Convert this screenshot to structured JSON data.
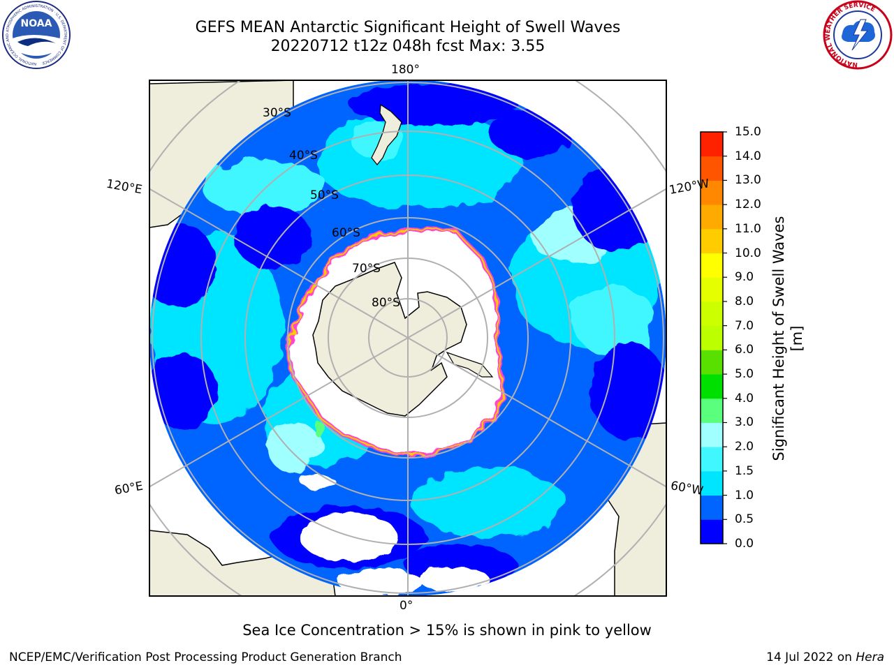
{
  "title": {
    "line1": "GEFS MEAN Antarctic Significant Height of Swell Waves",
    "line2": "20220712 t12z 048h fcst   Max: 3.55"
  },
  "logos": {
    "left": "NOAA",
    "left_ring": "NATIONAL OCEANIC AND ATMOSPHERIC ADMINISTRATION · U.S. DEPARTMENT OF COMMERCE",
    "right_ring": "NATIONAL WEATHER SERVICE"
  },
  "map": {
    "projection": "south-polar-stereographic",
    "longitude_labels": {
      "top": "180°",
      "bottom": "0°",
      "upper_left": "120°E",
      "upper_right": "120°W",
      "lower_left": "60°E",
      "lower_right": "60°W"
    },
    "latitude_labels": [
      "30°S",
      "40°S",
      "50°S",
      "60°S",
      "70°S",
      "80°S"
    ],
    "colors": {
      "land": "#efeddc",
      "sea_ice": "#ffffff",
      "ice_edge": "#ff44cc",
      "grid": "#b0b0b0"
    }
  },
  "colorbar": {
    "label": "Significant Height of Swell Waves [m]",
    "ticks": [
      "15.0",
      "14.0",
      "13.0",
      "12.0",
      "11.0",
      "10.0",
      "9.0",
      "8.0",
      "7.0",
      "6.0",
      "5.0",
      "4.0",
      "3.0",
      "2.0",
      "1.5",
      "1.0",
      "0.5",
      "0.0"
    ],
    "colors": [
      "#0000ff",
      "#0064ff",
      "#00e5ff",
      "#40f6ff",
      "#a0ffff",
      "#5aff7e",
      "#00e000",
      "#5ae000",
      "#bbff00",
      "#ccff00",
      "#e6ff00",
      "#ffff00",
      "#ffcc00",
      "#ffaa00",
      "#ff8800",
      "#ff5500",
      "#ff2200"
    ]
  },
  "note": "Sea Ice Concentration > 15% is shown in pink to yellow",
  "footer": {
    "left": "NCEP/EMC/Verification Post Processing Product Generation Branch",
    "right_prefix": "14 Jul 2022 on ",
    "right_italic": "Hera"
  }
}
